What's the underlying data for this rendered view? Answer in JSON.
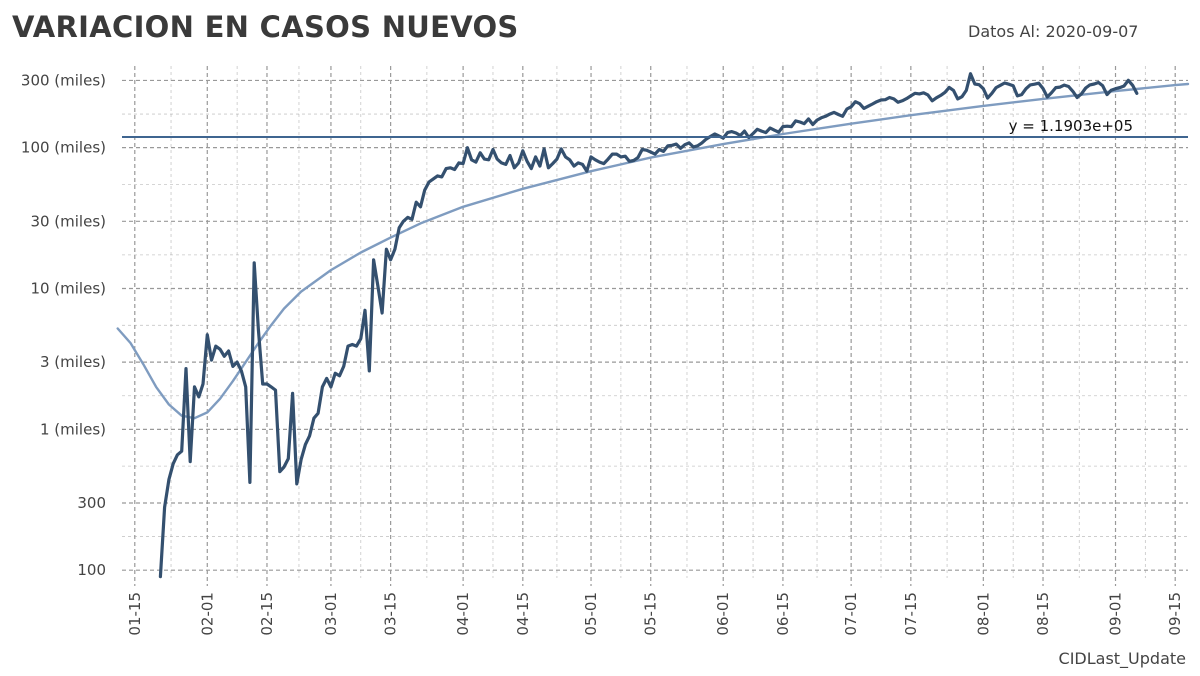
{
  "header": {
    "title": "VARIACION EN CASOS NUEVOS",
    "as_of": "Datos Al: 2020-09-07"
  },
  "footer": {
    "caption": "CIDLast_Update"
  },
  "colors": {
    "series": "#34506f",
    "trend": "#7f9cc0",
    "hline": "#3f6590",
    "grid": "#999999"
  },
  "chart_data": {
    "type": "line",
    "title": "VARIACION EN CASOS NUEVOS",
    "xlabel": "",
    "ylabel": "",
    "yscale": "log",
    "xlim": [
      "2020-01-12",
      "2020-09-18"
    ],
    "ylim": [
      88,
      380000
    ],
    "grid": true,
    "x_ticks": [
      "2020-01-15",
      "2020-02-01",
      "2020-02-15",
      "2020-03-01",
      "2020-03-15",
      "2020-04-01",
      "2020-04-15",
      "2020-05-01",
      "2020-05-15",
      "2020-06-01",
      "2020-06-15",
      "2020-07-01",
      "2020-07-15",
      "2020-08-01",
      "2020-08-15",
      "2020-09-01",
      "2020-09-15"
    ],
    "x_tick_labels": [
      "01-15",
      "02-01",
      "02-15",
      "03-01",
      "03-15",
      "04-01",
      "04-15",
      "05-01",
      "05-15",
      "06-01",
      "06-15",
      "07-01",
      "07-15",
      "08-01",
      "08-15",
      "09-01",
      "09-15"
    ],
    "y_ticks": [
      100,
      300,
      1000,
      3000,
      10000,
      30000,
      100000,
      300000
    ],
    "y_tick_labels": [
      "100",
      "300",
      "1 (miles)",
      "3 (miles)",
      "10 (miles)",
      "30 (miles)",
      "100 (miles)",
      "300 (miles)"
    ],
    "series": [
      {
        "values": [
          [
            "2020-01-21",
            90
          ],
          [
            "2020-01-22",
            280
          ],
          [
            "2020-01-23",
            440
          ],
          [
            "2020-01-24",
            570
          ],
          [
            "2020-01-25",
            660
          ],
          [
            "2020-01-26",
            700
          ],
          [
            "2020-01-27",
            2700
          ],
          [
            "2020-01-28",
            590
          ],
          [
            "2020-01-29",
            2000
          ],
          [
            "2020-01-30",
            1700
          ],
          [
            "2020-01-31",
            2100
          ],
          [
            "2020-02-01",
            4700
          ],
          [
            "2020-02-02",
            3100
          ],
          [
            "2020-02-03",
            3900
          ],
          [
            "2020-02-04",
            3700
          ],
          [
            "2020-02-05",
            3300
          ],
          [
            "2020-02-06",
            3600
          ],
          [
            "2020-02-07",
            2800
          ],
          [
            "2020-02-08",
            3000
          ],
          [
            "2020-02-09",
            2600
          ],
          [
            "2020-02-10",
            2000
          ],
          [
            "2020-02-11",
            420
          ],
          [
            "2020-02-12",
            15200
          ],
          [
            "2020-02-13",
            5100
          ],
          [
            "2020-02-14",
            2100
          ],
          [
            "2020-02-15",
            2100
          ],
          [
            "2020-02-16",
            2000
          ],
          [
            "2020-02-17",
            1900
          ],
          [
            "2020-02-18",
            500
          ],
          [
            "2020-02-19",
            540
          ],
          [
            "2020-02-20",
            620
          ],
          [
            "2020-02-21",
            1800
          ],
          [
            "2020-02-22",
            410
          ],
          [
            "2020-02-23",
            610
          ],
          [
            "2020-02-24",
            780
          ],
          [
            "2020-02-25",
            900
          ],
          [
            "2020-02-26",
            1200
          ],
          [
            "2020-02-27",
            1300
          ],
          [
            "2020-02-28",
            2000
          ],
          [
            "2020-02-29",
            2300
          ],
          [
            "2020-03-01",
            2000
          ],
          [
            "2020-03-02",
            2500
          ],
          [
            "2020-03-03",
            2400
          ],
          [
            "2020-03-04",
            2800
          ],
          [
            "2020-03-05",
            3900
          ],
          [
            "2020-03-06",
            4000
          ],
          [
            "2020-03-07",
            3900
          ],
          [
            "2020-03-08",
            4400
          ],
          [
            "2020-03-09",
            7000
          ],
          [
            "2020-03-10",
            2600
          ],
          [
            "2020-03-11",
            16000
          ],
          [
            "2020-03-12",
            10500
          ],
          [
            "2020-03-13",
            6700
          ],
          [
            "2020-03-14",
            19000
          ],
          [
            "2020-03-15",
            16000
          ],
          [
            "2020-03-16",
            19000
          ],
          [
            "2020-03-17",
            27000
          ],
          [
            "2020-03-18",
            30000
          ],
          [
            "2020-03-19",
            32000
          ],
          [
            "2020-03-20",
            31000
          ],
          [
            "2020-03-21",
            41000
          ],
          [
            "2020-03-22",
            38000
          ],
          [
            "2020-03-23",
            50000
          ],
          [
            "2020-03-24",
            57000
          ],
          [
            "2020-03-25",
            60000
          ],
          [
            "2020-03-26",
            63000
          ],
          [
            "2020-03-27",
            62000
          ],
          [
            "2020-03-28",
            71000
          ],
          [
            "2020-03-29",
            72000
          ],
          [
            "2020-03-30",
            70000
          ],
          [
            "2020-03-31",
            78000
          ],
          [
            "2020-04-01",
            77000
          ],
          [
            "2020-04-02",
            100000
          ],
          [
            "2020-04-03",
            82000
          ],
          [
            "2020-04-04",
            79000
          ],
          [
            "2020-04-05",
            92000
          ],
          [
            "2020-04-06",
            83000
          ],
          [
            "2020-04-07",
            82000
          ],
          [
            "2020-04-08",
            97000
          ],
          [
            "2020-04-09",
            83000
          ],
          [
            "2020-04-10",
            78000
          ],
          [
            "2020-04-11",
            76000
          ],
          [
            "2020-04-12",
            88000
          ],
          [
            "2020-04-13",
            72000
          ],
          [
            "2020-04-14",
            78000
          ],
          [
            "2020-04-15",
            95000
          ],
          [
            "2020-04-16",
            80000
          ],
          [
            "2020-04-17",
            71000
          ],
          [
            "2020-04-18",
            86000
          ],
          [
            "2020-04-19",
            74000
          ],
          [
            "2020-04-20",
            98000
          ],
          [
            "2020-04-21",
            72000
          ],
          [
            "2020-04-22",
            77000
          ],
          [
            "2020-04-23",
            83000
          ],
          [
            "2020-04-24",
            98000
          ],
          [
            "2020-04-25",
            86000
          ],
          [
            "2020-04-26",
            82000
          ],
          [
            "2020-04-27",
            74000
          ],
          [
            "2020-04-28",
            78000
          ],
          [
            "2020-04-29",
            76000
          ],
          [
            "2020-04-30",
            68000
          ],
          [
            "2020-05-01",
            86000
          ],
          [
            "2020-05-02",
            82000
          ],
          [
            "2020-05-03",
            79000
          ],
          [
            "2020-05-04",
            77000
          ],
          [
            "2020-05-05",
            83000
          ],
          [
            "2020-05-06",
            90000
          ],
          [
            "2020-05-07",
            90000
          ],
          [
            "2020-05-08",
            86000
          ],
          [
            "2020-05-09",
            87000
          ],
          [
            "2020-05-10",
            80000
          ],
          [
            "2020-05-11",
            81000
          ],
          [
            "2020-05-12",
            85000
          ],
          [
            "2020-05-13",
            97000
          ],
          [
            "2020-05-14",
            96000
          ],
          [
            "2020-05-15",
            93000
          ],
          [
            "2020-05-16",
            90000
          ],
          [
            "2020-05-17",
            97000
          ],
          [
            "2020-05-18",
            94000
          ],
          [
            "2020-05-19",
            103000
          ],
          [
            "2020-05-20",
            104000
          ],
          [
            "2020-05-21",
            106000
          ],
          [
            "2020-05-22",
            99000
          ],
          [
            "2020-05-23",
            105000
          ],
          [
            "2020-05-24",
            108000
          ],
          [
            "2020-05-25",
            101000
          ],
          [
            "2020-05-26",
            103000
          ],
          [
            "2020-05-27",
            108000
          ],
          [
            "2020-05-28",
            115000
          ],
          [
            "2020-05-29",
            120000
          ],
          [
            "2020-05-30",
            125000
          ],
          [
            "2020-05-31",
            121000
          ],
          [
            "2020-06-01",
            117000
          ],
          [
            "2020-06-02",
            128000
          ],
          [
            "2020-06-03",
            130000
          ],
          [
            "2020-06-04",
            127000
          ],
          [
            "2020-06-05",
            122000
          ],
          [
            "2020-06-06",
            131000
          ],
          [
            "2020-06-07",
            118000
          ],
          [
            "2020-06-08",
            126000
          ],
          [
            "2020-06-09",
            135000
          ],
          [
            "2020-06-10",
            131000
          ],
          [
            "2020-06-11",
            128000
          ],
          [
            "2020-06-12",
            138000
          ],
          [
            "2020-06-13",
            133000
          ],
          [
            "2020-06-14",
            129000
          ],
          [
            "2020-06-15",
            141000
          ],
          [
            "2020-06-16",
            142000
          ],
          [
            "2020-06-17",
            141000
          ],
          [
            "2020-06-18",
            155000
          ],
          [
            "2020-06-19",
            152000
          ],
          [
            "2020-06-20",
            148000
          ],
          [
            "2020-06-21",
            160000
          ],
          [
            "2020-06-22",
            146000
          ],
          [
            "2020-06-23",
            157000
          ],
          [
            "2020-06-24",
            163000
          ],
          [
            "2020-06-25",
            167000
          ],
          [
            "2020-06-26",
            173000
          ],
          [
            "2020-06-27",
            178000
          ],
          [
            "2020-06-28",
            172000
          ],
          [
            "2020-06-29",
            167000
          ],
          [
            "2020-06-30",
            188000
          ],
          [
            "2020-07-01",
            195000
          ],
          [
            "2020-07-02",
            212000
          ],
          [
            "2020-07-03",
            205000
          ],
          [
            "2020-07-04",
            190000
          ],
          [
            "2020-07-05",
            197000
          ],
          [
            "2020-07-06",
            204000
          ],
          [
            "2020-07-07",
            212000
          ],
          [
            "2020-07-08",
            218000
          ],
          [
            "2020-07-09",
            219000
          ],
          [
            "2020-07-10",
            227000
          ],
          [
            "2020-07-11",
            222000
          ],
          [
            "2020-07-12",
            210000
          ],
          [
            "2020-07-13",
            215000
          ],
          [
            "2020-07-14",
            223000
          ],
          [
            "2020-07-15",
            233000
          ],
          [
            "2020-07-16",
            243000
          ],
          [
            "2020-07-17",
            241000
          ],
          [
            "2020-07-18",
            245000
          ],
          [
            "2020-07-19",
            237000
          ],
          [
            "2020-07-20",
            215000
          ],
          [
            "2020-07-21",
            226000
          ],
          [
            "2020-07-22",
            235000
          ],
          [
            "2020-07-23",
            247000
          ],
          [
            "2020-07-24",
            268000
          ],
          [
            "2020-07-25",
            255000
          ],
          [
            "2020-07-26",
            222000
          ],
          [
            "2020-07-27",
            230000
          ],
          [
            "2020-07-28",
            255000
          ],
          [
            "2020-07-29",
            335000
          ],
          [
            "2020-07-30",
            283000
          ],
          [
            "2020-07-31",
            280000
          ],
          [
            "2020-08-01",
            262000
          ],
          [
            "2020-08-02",
            225000
          ],
          [
            "2020-08-03",
            243000
          ],
          [
            "2020-08-04",
            267000
          ],
          [
            "2020-08-05",
            277000
          ],
          [
            "2020-08-06",
            288000
          ],
          [
            "2020-08-07",
            282000
          ],
          [
            "2020-08-08",
            275000
          ],
          [
            "2020-08-09",
            233000
          ],
          [
            "2020-08-10",
            238000
          ],
          [
            "2020-08-11",
            262000
          ],
          [
            "2020-08-12",
            279000
          ],
          [
            "2020-08-13",
            282000
          ],
          [
            "2020-08-14",
            287000
          ],
          [
            "2020-08-15",
            263000
          ],
          [
            "2020-08-16",
            229000
          ],
          [
            "2020-08-17",
            246000
          ],
          [
            "2020-08-18",
            267000
          ],
          [
            "2020-08-19",
            269000
          ],
          [
            "2020-08-20",
            278000
          ],
          [
            "2020-08-21",
            272000
          ],
          [
            "2020-08-22",
            251000
          ],
          [
            "2020-08-23",
            227000
          ],
          [
            "2020-08-24",
            241000
          ],
          [
            "2020-08-25",
            265000
          ],
          [
            "2020-08-26",
            279000
          ],
          [
            "2020-08-27",
            283000
          ],
          [
            "2020-08-28",
            290000
          ],
          [
            "2020-08-29",
            275000
          ],
          [
            "2020-08-30",
            238000
          ],
          [
            "2020-08-31",
            256000
          ],
          [
            "2020-09-01",
            262000
          ],
          [
            "2020-09-02",
            267000
          ],
          [
            "2020-09-03",
            274000
          ],
          [
            "2020-09-04",
            301000
          ],
          [
            "2020-09-05",
            277000
          ],
          [
            "2020-09-06",
            243000
          ]
        ]
      },
      {
        "values": [
          [
            "2020-01-11",
            5200
          ],
          [
            "2020-01-14",
            4100
          ],
          [
            "2020-01-17",
            2900
          ],
          [
            "2020-01-20",
            2000
          ],
          [
            "2020-01-23",
            1500
          ],
          [
            "2020-01-26",
            1250
          ],
          [
            "2020-01-29",
            1200
          ],
          [
            "2020-02-01",
            1320
          ],
          [
            "2020-02-04",
            1650
          ],
          [
            "2020-02-07",
            2200
          ],
          [
            "2020-02-10",
            3000
          ],
          [
            "2020-02-13",
            4100
          ],
          [
            "2020-02-16",
            5500
          ],
          [
            "2020-02-19",
            7200
          ],
          [
            "2020-02-23",
            9500
          ],
          [
            "2020-03-01",
            13500
          ],
          [
            "2020-03-08",
            18000
          ],
          [
            "2020-03-15",
            23000
          ],
          [
            "2020-03-22",
            29000
          ],
          [
            "2020-04-01",
            38000
          ],
          [
            "2020-04-15",
            51000
          ],
          [
            "2020-05-01",
            68000
          ],
          [
            "2020-05-15",
            85000
          ],
          [
            "2020-06-01",
            106000
          ],
          [
            "2020-06-15",
            125000
          ],
          [
            "2020-07-01",
            148000
          ],
          [
            "2020-07-15",
            170000
          ],
          [
            "2020-08-01",
            198000
          ],
          [
            "2020-08-15",
            222000
          ],
          [
            "2020-09-01",
            252000
          ],
          [
            "2020-09-15",
            278000
          ],
          [
            "2020-09-18",
            283000
          ]
        ]
      }
    ],
    "hlines": [
      {
        "y": 119030,
        "label": "y = 1.1903e+05"
      }
    ]
  }
}
